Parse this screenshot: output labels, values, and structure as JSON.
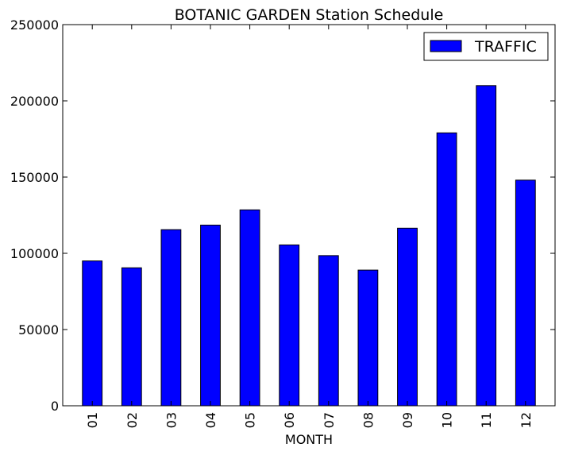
{
  "chart_data": {
    "type": "bar",
    "title": "BOTANIC GARDEN Station Schedule",
    "xlabel": "MONTH",
    "ylabel": "",
    "categories": [
      "01",
      "02",
      "03",
      "04",
      "05",
      "06",
      "07",
      "08",
      "09",
      "10",
      "11",
      "12"
    ],
    "series": [
      {
        "name": "TRAFFIC",
        "values": [
          95000,
          90500,
          115500,
          118500,
          128500,
          105500,
          98500,
          89000,
          116500,
          179000,
          210000,
          148000
        ]
      }
    ],
    "ylim": [
      0,
      250000
    ],
    "yticks": [
      "0",
      "50000",
      "100000",
      "150000",
      "200000",
      "250000"
    ],
    "legend": "top-right",
    "grid": false,
    "bar_color": "#0000ff",
    "edge_color": "#000000"
  }
}
